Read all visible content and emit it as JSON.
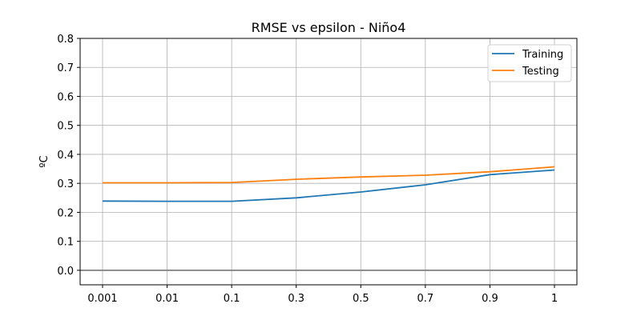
{
  "chart_data": {
    "type": "line",
    "title": "RMSE vs epsilon - Niño4",
    "xlabel": "",
    "ylabel": "ºC",
    "categories": [
      "0.001",
      "0.01",
      "0.1",
      "0.3",
      "0.5",
      "0.7",
      "0.9",
      "1"
    ],
    "ylim": [
      -0.05,
      0.8
    ],
    "yticks": [
      "0.0",
      "0.1",
      "0.2",
      "0.3",
      "0.4",
      "0.5",
      "0.6",
      "0.7",
      "0.8"
    ],
    "grid": true,
    "legend_position": "top-right",
    "reference_line": {
      "y": 0.0,
      "color": "#808080"
    },
    "series": [
      {
        "name": "Training",
        "color": "#1f77b4",
        "values": [
          0.239,
          0.238,
          0.238,
          0.25,
          0.27,
          0.295,
          0.33,
          0.346
        ]
      },
      {
        "name": "Testing",
        "color": "#ff7f0e",
        "values": [
          0.302,
          0.302,
          0.303,
          0.314,
          0.322,
          0.328,
          0.34,
          0.357
        ]
      }
    ]
  }
}
